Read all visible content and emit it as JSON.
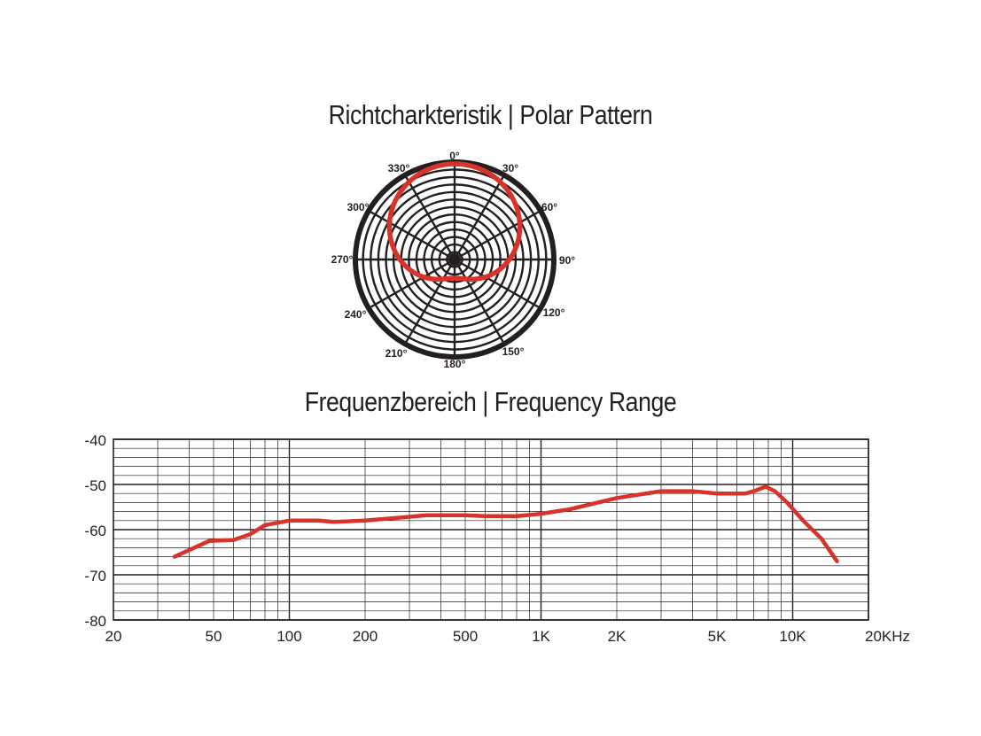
{
  "chart_data": [
    {
      "type": "polar",
      "title": "Richtcharkteristik | Polar Pattern",
      "pattern": "cardioid",
      "angle_labels": [
        "0°",
        "30°",
        "60°",
        "90°",
        "120°",
        "150°",
        "180°",
        "210°",
        "240°",
        "270°",
        "300°",
        "330°"
      ],
      "series_color": "#d7332b"
    },
    {
      "type": "line",
      "title": "Frequenzbereich | Frequency Range",
      "xscale": "log",
      "xlim": [
        20,
        20000
      ],
      "ylim": [
        -80,
        -40
      ],
      "x_tick_labels": [
        "20",
        "50",
        "100",
        "200",
        "500",
        "1K",
        "2K",
        "5K",
        "10K",
        "20KHz"
      ],
      "x_tick_values": [
        20,
        50,
        100,
        200,
        500,
        1000,
        2000,
        5000,
        10000,
        20000
      ],
      "y_tick_labels": [
        "-40",
        "-50",
        "-60",
        "-70",
        "-80"
      ],
      "y_tick_values": [
        -40,
        -50,
        -60,
        -70,
        -80
      ],
      "grid": true,
      "series_color": "#d7332b",
      "series": [
        {
          "x": [
            35,
            48,
            60,
            70,
            80,
            100,
            130,
            150,
            200,
            280,
            350,
            500,
            600,
            800,
            1000,
            1300,
            2000,
            3000,
            4000,
            5000,
            6500,
            7000,
            7800,
            8500,
            9500,
            11000,
            13000,
            15000
          ],
          "y": [
            -66,
            -62.5,
            -62.3,
            -61,
            -59,
            -58,
            -58,
            -58.3,
            -58,
            -57.3,
            -56.8,
            -56.8,
            -57,
            -57,
            -56.5,
            -55.5,
            -53,
            -51.5,
            -51.5,
            -52,
            -52,
            -51.5,
            -50.5,
            -51.5,
            -54,
            -58,
            -62,
            -67
          ]
        }
      ]
    }
  ]
}
